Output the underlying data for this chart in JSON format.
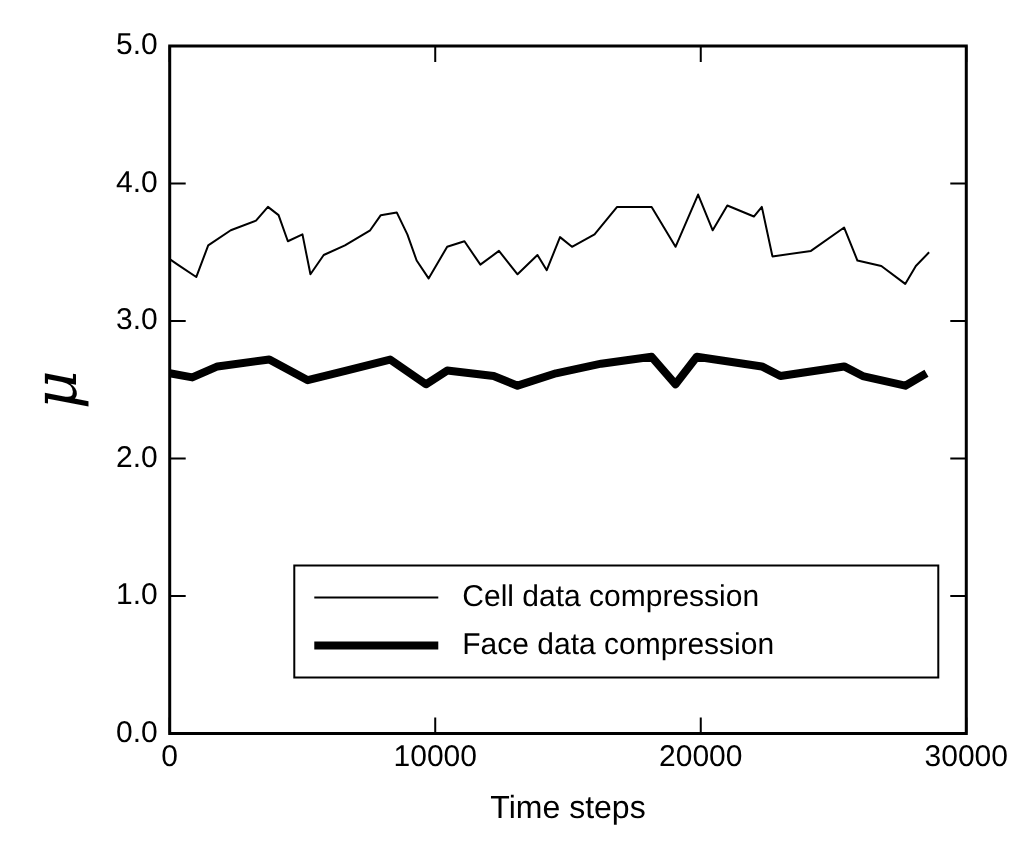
{
  "chart_data": {
    "type": "line",
    "xlabel": "Time steps",
    "ylabel": "μ",
    "xlim": [
      0,
      30000
    ],
    "xticks": [
      0,
      10000,
      20000,
      30000
    ],
    "ylim": [
      0,
      5
    ],
    "yticks": [
      {
        "value": 0,
        "label": "0.0"
      },
      {
        "value": 1,
        "label": "1.0"
      },
      {
        "value": 2,
        "label": "2.0"
      },
      {
        "value": 3,
        "label": "3.0"
      },
      {
        "value": 4,
        "label": "4.0"
      },
      {
        "value": 5,
        "label": "5.0"
      }
    ],
    "legend": "bottom right",
    "marker": "none",
    "line_style": "solid",
    "series": [
      {
        "name": "Cell data compression",
        "color": "#000000",
        "x": [
          0,
          300,
          1000,
          1450,
          2300,
          3250,
          3700,
          4100,
          4450,
          5000,
          5300,
          5800,
          6600,
          7550,
          7950,
          8550,
          8950,
          9300,
          9750,
          10450,
          11100,
          11700,
          12400,
          13100,
          13850,
          14200,
          14700,
          15150,
          16000,
          16850,
          18150,
          19050,
          19900,
          20450,
          21000,
          22000,
          22300,
          22700,
          24150,
          25400,
          25900,
          26800,
          27700,
          28100,
          28600
        ],
        "values": [
          3.45,
          3.41,
          3.32,
          3.55,
          3.66,
          3.73,
          3.83,
          3.77,
          3.58,
          3.63,
          3.34,
          3.48,
          3.55,
          3.66,
          3.77,
          3.79,
          3.63,
          3.44,
          3.31,
          3.54,
          3.58,
          3.41,
          3.51,
          3.34,
          3.48,
          3.37,
          3.61,
          3.54,
          3.63,
          3.83,
          3.83,
          3.54,
          3.92,
          3.66,
          3.84,
          3.76,
          3.83,
          3.47,
          3.51,
          3.68,
          3.44,
          3.4,
          3.27,
          3.4,
          3.5
        ]
      },
      {
        "name": "Face data compression",
        "color": "#000000",
        "x": [
          0,
          850,
          1800,
          3750,
          5200,
          6650,
          8300,
          9650,
          10450,
          12200,
          13100,
          14550,
          16250,
          18150,
          19050,
          19850,
          22300,
          23000,
          25400,
          26100,
          27700,
          28500
        ],
        "values": [
          2.62,
          2.59,
          2.67,
          2.72,
          2.57,
          2.64,
          2.72,
          2.54,
          2.64,
          2.6,
          2.53,
          2.62,
          2.69,
          2.74,
          2.54,
          2.74,
          2.67,
          2.6,
          2.67,
          2.6,
          2.53,
          2.62
        ]
      }
    ]
  }
}
